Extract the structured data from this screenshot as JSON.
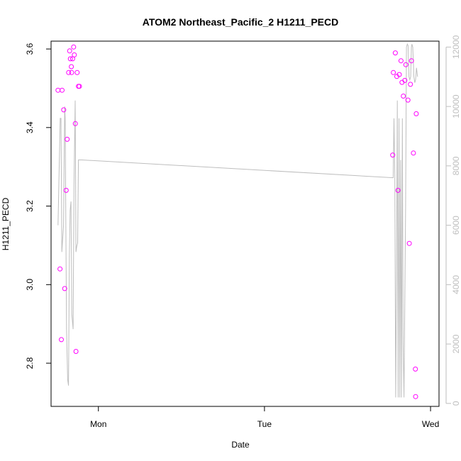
{
  "chart_data": {
    "type": "scatter",
    "title": "ATOM2 Northeast_Pacific_2 H1211_PECD",
    "xlabel": "Date",
    "ylabel": "H1211_PECD",
    "x_ticks": [
      {
        "label": "Mon",
        "value": 1.0
      },
      {
        "label": "Tue",
        "value": 2.0
      },
      {
        "label": "Wed",
        "value": 3.0
      }
    ],
    "xlim": [
      0.715,
      3.051
    ],
    "ylim": [
      2.69,
      3.62
    ],
    "y_ticks": [
      2.8,
      3.0,
      3.2,
      3.4,
      3.6
    ],
    "y_tick_labels": [
      "2.8",
      "3.0",
      "3.2",
      "3.4",
      "3.6"
    ],
    "y2lim": [
      -100,
      12200
    ],
    "y2_ticks": [
      0,
      2000,
      4000,
      6000,
      8000,
      10000,
      12000
    ],
    "y2_tick_labels": [
      "0",
      "2000",
      "4000",
      "6000",
      "8000",
      "10000",
      "12000"
    ],
    "colors": {
      "points": "#ff00ff",
      "line": "#bebebe",
      "axis": "#000000",
      "right_axis": "#bebebe"
    },
    "series": [
      {
        "marker": "circle-open",
        "axis": "left",
        "x": [
          0.757,
          0.769,
          0.777,
          0.781,
          0.791,
          0.797,
          0.806,
          0.812,
          0.821,
          0.827,
          0.831,
          0.837,
          0.839,
          0.845,
          0.851,
          0.855,
          0.861,
          0.865,
          0.872,
          0.88,
          0.886,
          2.772,
          2.776,
          2.788,
          2.797,
          2.804,
          2.812,
          2.822,
          2.828,
          2.836,
          2.845,
          2.851,
          2.864,
          2.872,
          2.879,
          2.885,
          2.897,
          2.909,
          2.91,
          2.914
        ],
        "y": [
          3.495,
          3.04,
          2.86,
          3.495,
          3.445,
          2.99,
          3.24,
          3.37,
          3.54,
          3.595,
          3.575,
          3.555,
          3.54,
          3.575,
          3.605,
          3.585,
          3.41,
          2.83,
          3.54,
          3.505,
          3.505,
          3.33,
          3.54,
          3.59,
          3.53,
          3.24,
          3.535,
          3.57,
          3.515,
          3.48,
          3.52,
          3.56,
          3.47,
          3.105,
          3.51,
          3.57,
          3.335,
          2.785,
          2.715,
          3.435
        ]
      },
      {
        "marker": "line",
        "axis": "right",
        "x": [
          0.757,
          0.77,
          0.775,
          0.78,
          0.79,
          0.797,
          0.8,
          0.808,
          0.815,
          0.82,
          0.825,
          0.83,
          0.835,
          0.84,
          0.848,
          0.853,
          0.86,
          0.865,
          0.87,
          0.875,
          0.88,
          0.89,
          0.895,
          0.9,
          2.775,
          2.78,
          2.785,
          2.79,
          2.795,
          2.8,
          2.805,
          2.81,
          2.815,
          2.82,
          2.825,
          2.83,
          2.835,
          2.84,
          2.85,
          2.855,
          2.86,
          2.865,
          2.87,
          2.875,
          2.88,
          2.885,
          2.888,
          2.89,
          2.893,
          2.9,
          2.905,
          2.91,
          2.915,
          2.922
        ],
        "y": [
          6000,
          9600,
          9600,
          5100,
          6000,
          10000,
          9600,
          2500,
          800,
          600,
          5000,
          6500,
          6800,
          3000,
          2500,
          7300,
          10200,
          5100,
          5300,
          5400,
          8200,
          8200,
          8200,
          8200,
          7600,
          9600,
          7600,
          200,
          4200,
          10200,
          200,
          9600,
          200,
          8200,
          200,
          9600,
          2000,
          200,
          6600,
          12000,
          12100,
          12050,
          11000,
          10900,
          11000,
          12000,
          12100,
          12050,
          12000,
          11000,
          10800,
          10900,
          11300,
          11000
        ]
      }
    ]
  }
}
